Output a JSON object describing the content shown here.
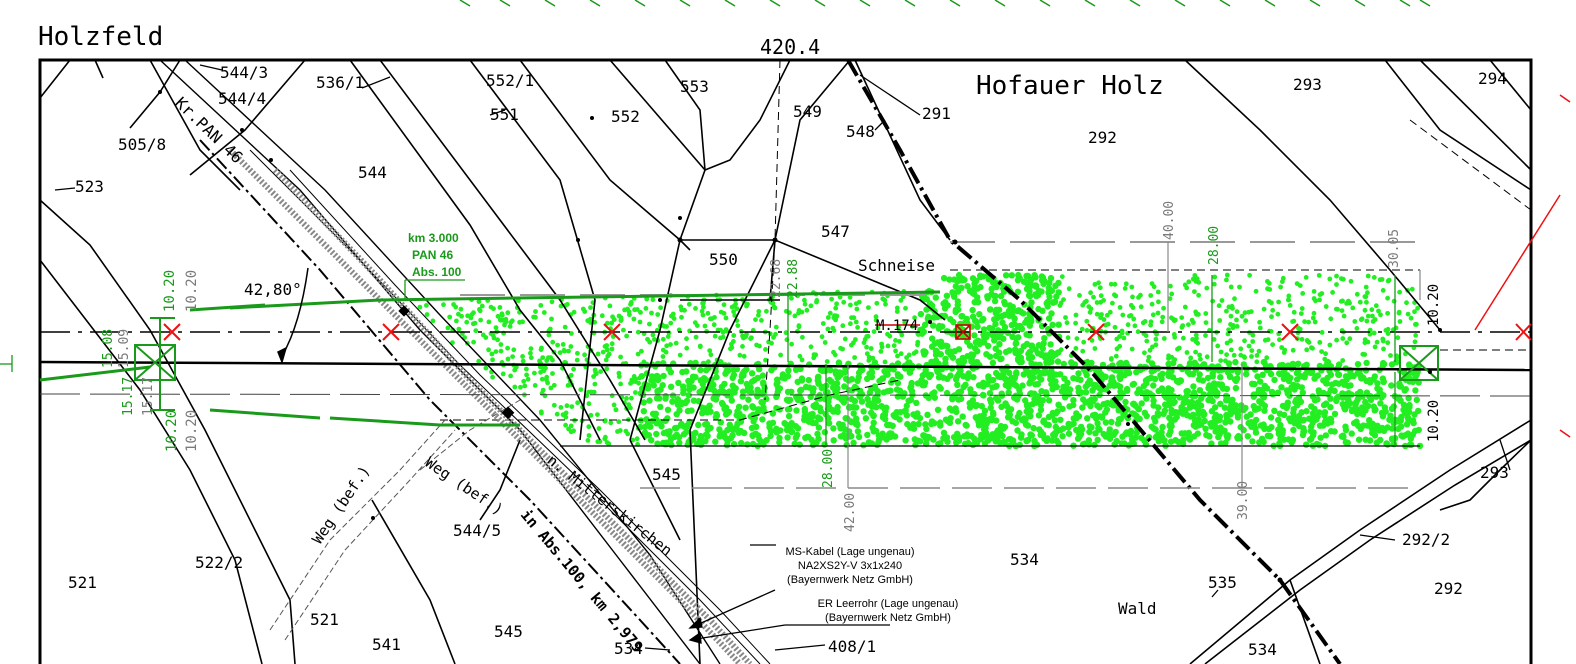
{
  "map": {
    "place_names": {
      "holzfeld": "Holzfeld",
      "hofauer_holz": "Hofauer Holz",
      "schneise": "Schneise",
      "wald": "Wald"
    },
    "top_measure": "420.4",
    "parcels": {
      "p544_3": "544/3",
      "p544_4": "544/4",
      "p536_1": "536/1",
      "p552_1": "552/1",
      "p553": "553",
      "p549": "549",
      "p291": "291",
      "p293_top": "293",
      "p294": "294",
      "p505_8": "505/8",
      "p551": "551",
      "p552": "552",
      "p548": "548",
      "p292_top": "292",
      "p523": "523",
      "p544": "544",
      "p547": "547",
      "p550": "550",
      "p545_mid": "545",
      "p544_5": "544/5",
      "p534_mid": "534",
      "p293_right": "293",
      "p292_2": "292/2",
      "p292_right": "292",
      "p535": "535",
      "p522_2": "522/2",
      "p521_left": "521",
      "p521_mid": "521",
      "p541": "541",
      "p545_bottom": "545",
      "p534_bottom": "534",
      "p408_1": "408/1",
      "p534_right": "534"
    },
    "roads": {
      "kr_pan": "Kr.PAN 46",
      "weg1": "Weg (bef.)",
      "weg2": "Weg (bef.)",
      "mitterskirchen": "n. Mitterskirchen",
      "abs": "in Abs.100, km 2,979"
    },
    "km_marker": {
      "line1": "km 3.000",
      "line2": "PAN 46",
      "line3": "Abs. 100"
    },
    "angle": "42,80°",
    "mast": "M.174",
    "dimensions": {
      "d10_20_a": "10.20",
      "d10_20_b": "10.20",
      "d15_08": "15.08",
      "d15_09": "15.09",
      "d15_17_a": "15.17",
      "d15_17_b": "15.17",
      "d10_20_c": "10.20",
      "d10_20_d": "10.20",
      "d22_68": "22.68",
      "d22_88": "22.88",
      "d40_00": "40.00",
      "d28_00_top": "28.00",
      "d30_05": "30.05",
      "d10_20_right1": "10.20",
      "d10_20_right2": "10.20",
      "d28_00_low": "28.00",
      "d42_00": "42.00",
      "d39_00": "39.00"
    },
    "cable1": {
      "line1": "MS-Kabel (Lage ungenau)",
      "line2": "NA2XS2Y-V 3x1x240",
      "line3": "(Bayernwerk Netz GmbH)"
    },
    "cable2": {
      "line1": "ER Leerrohr (Lage ungenau)",
      "line2": "(Bayernwerk Netz GmbH)"
    },
    "colors": {
      "vegetation": "#22ee22",
      "dimension_green": "#1a9a1a",
      "dimension_grey": "#7a7a7a",
      "cross_red": "#ee1111"
    }
  }
}
